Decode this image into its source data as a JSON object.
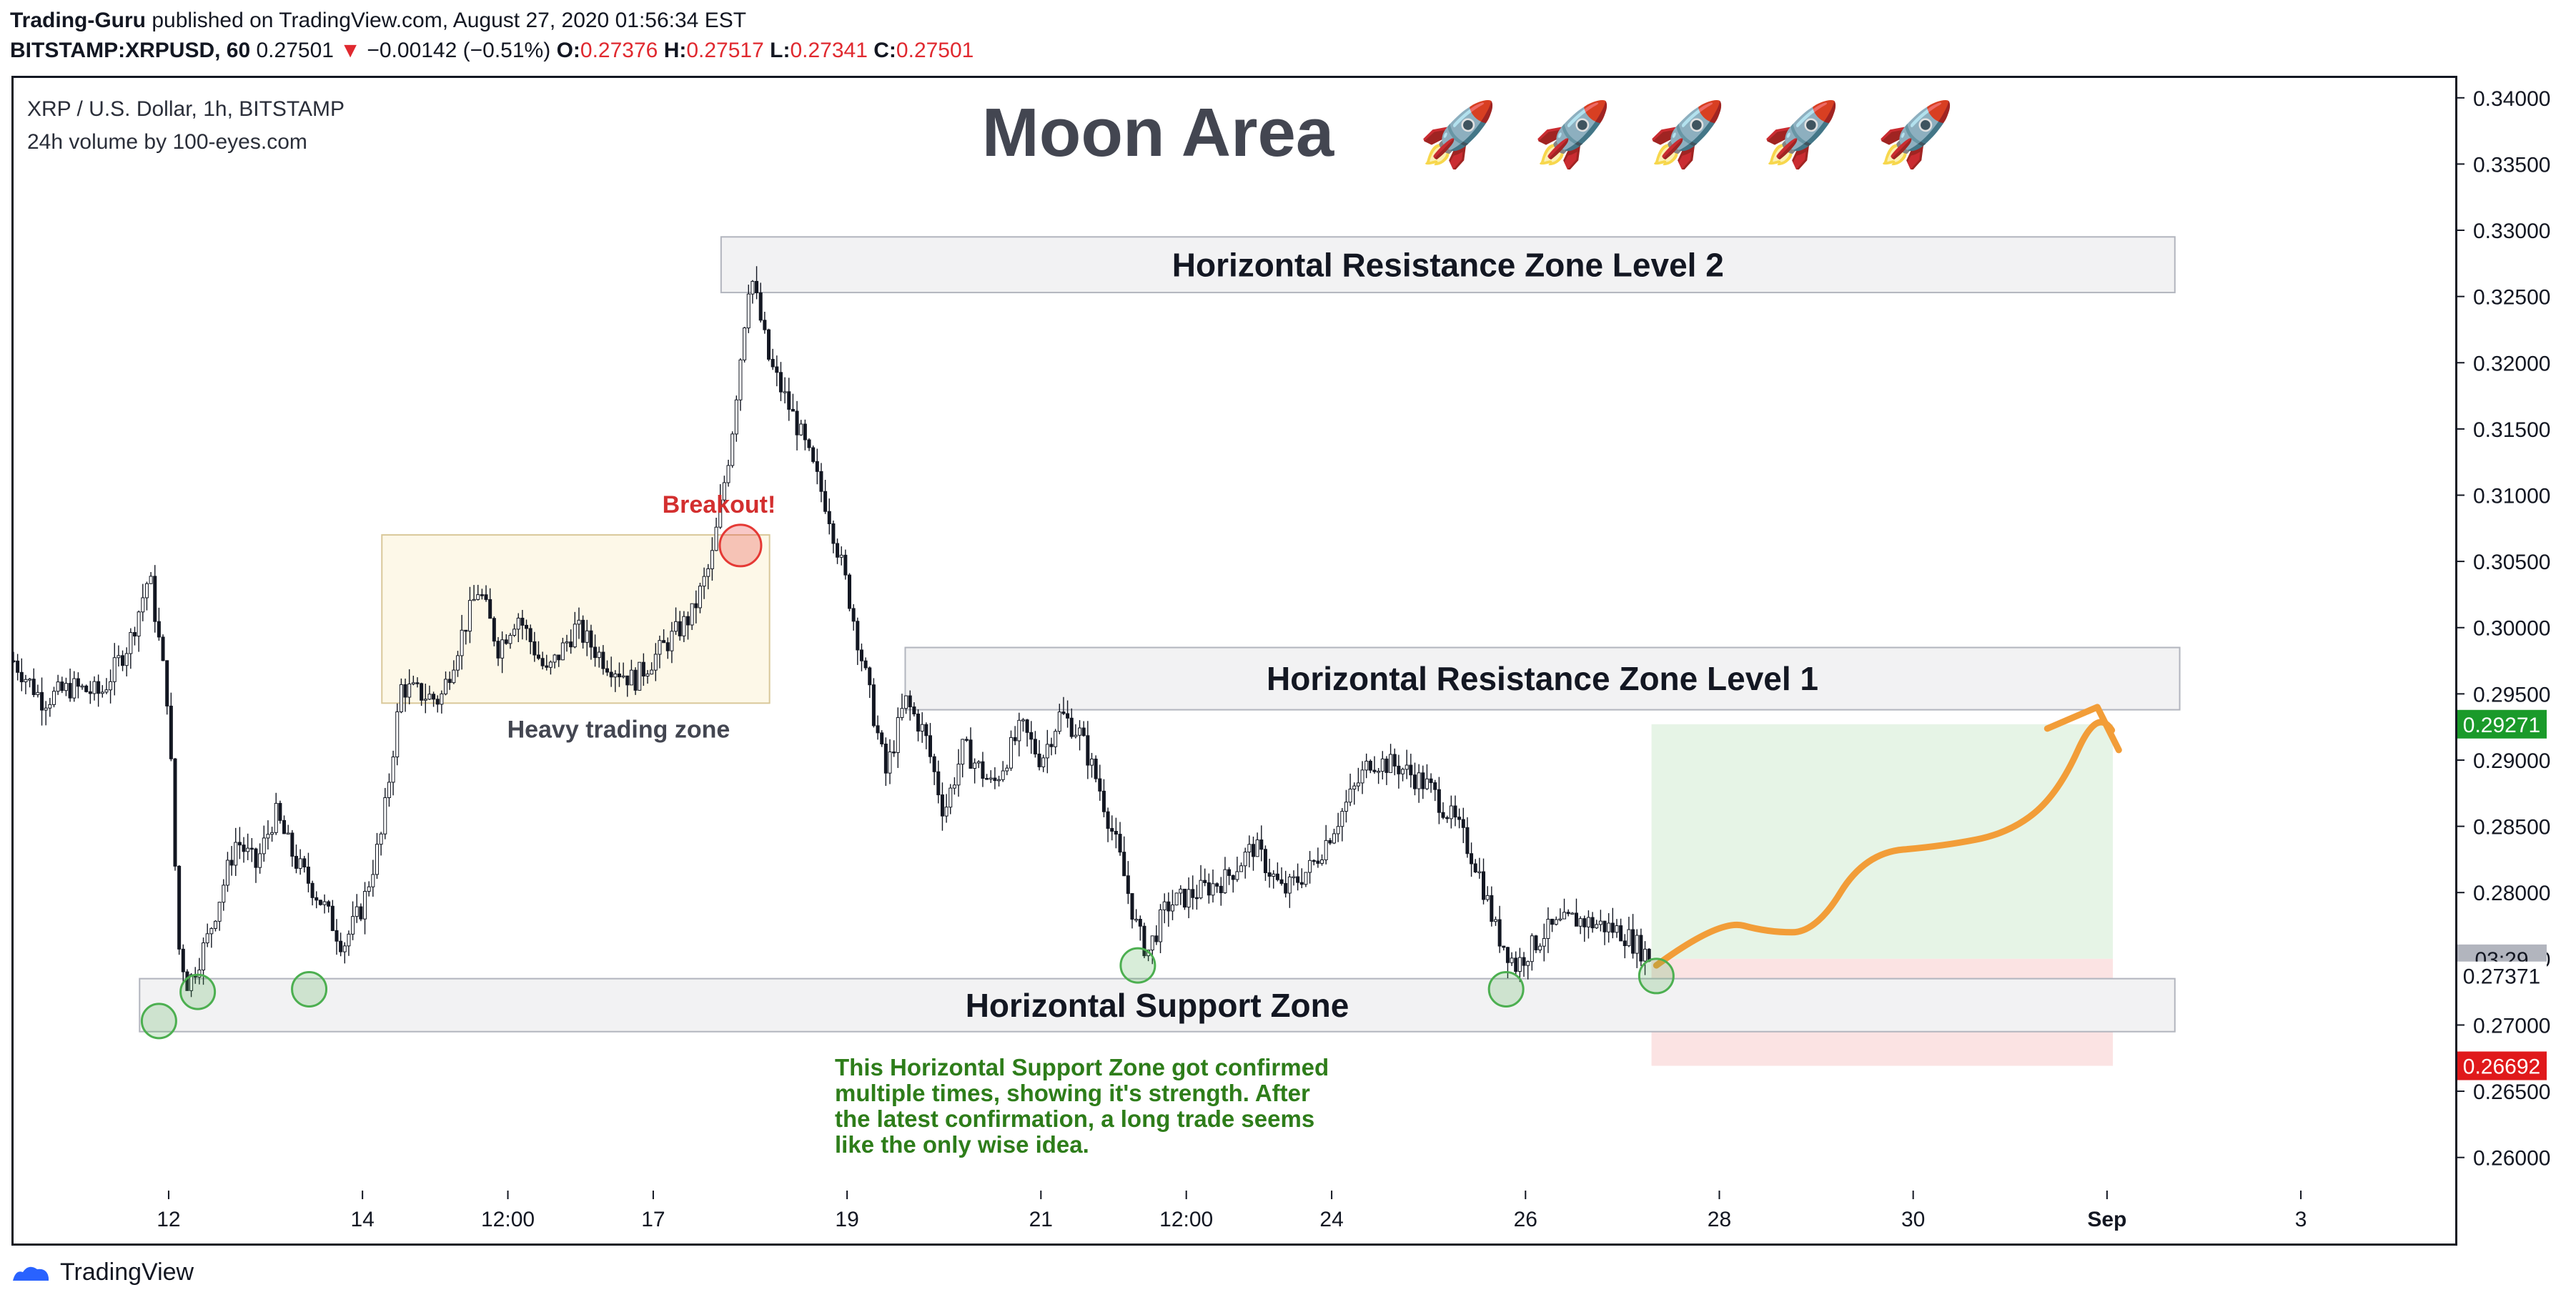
{
  "header": {
    "author": "Trading-Guru",
    "published": "published on TradingView.com, August 27, 2020 01:56:34 EST",
    "symbol": "BITSTAMP:XRPUSD, 60",
    "last": "0.27501",
    "down_arrow": "▼",
    "change": "−0.00142 (−0.51%)",
    "o_label": "O:",
    "o_value": "0.27376",
    "h_label": "H:",
    "h_value": "0.27517",
    "l_label": "L:",
    "l_value": "0.27341",
    "c_label": "C:",
    "c_value": "0.27501"
  },
  "legend": {
    "line1": "XRP / U.S. Dollar, 1h, BITSTAMP",
    "line2": "24h volume by 100-eyes.com"
  },
  "footer": {
    "brand": "TradingView"
  },
  "colors": {
    "candle": "#131722",
    "zone_fill": "#f2f2f3",
    "zone_stroke": "#b2b5be",
    "consolidation_fill": "#fdf8e8",
    "consolidation_stroke": "#d9c89a",
    "circle_green": "#4caf50",
    "circle_red": "#e53935",
    "target_fill": "#e6f4e6",
    "stop_fill": "#fbe3e3",
    "projection": "#f29d38",
    "green_label": "#1a9a2a",
    "red_label": "#e0191b",
    "grey_label": "#b2b5be",
    "note_text": "#2e7d1a",
    "breakout_text": "#d32f2f"
  },
  "chart_data": {
    "type": "candlestick",
    "title": "Moon Area",
    "title_emoji": "🚀",
    "y_ticks": [
      "0.34000",
      "0.33500",
      "0.33000",
      "0.32500",
      "0.32000",
      "0.31500",
      "0.31000",
      "0.30500",
      "0.30000",
      "0.29500",
      "0.29000",
      "0.28500",
      "0.28000",
      "0.27500",
      "0.27000",
      "0.26500",
      "0.26000"
    ],
    "y_tick_values": [
      0.34,
      0.335,
      0.33,
      0.325,
      0.32,
      0.315,
      0.31,
      0.305,
      0.3,
      0.295,
      0.29,
      0.285,
      0.28,
      0.275,
      0.27,
      0.265,
      0.26
    ],
    "ylim": [
      0.2575,
      0.3415
    ],
    "x_ticks": [
      "12",
      "14",
      "12:00",
      "17",
      "19",
      "21",
      "12:00",
      "24",
      "26",
      "28",
      "30",
      "Sep",
      "3"
    ],
    "x_tick_days": [
      12,
      14,
      15.5,
      17,
      19,
      21,
      22.5,
      24,
      26,
      28,
      30,
      32,
      34
    ],
    "xlim": [
      10.4,
      35.6
    ],
    "price_path": [
      [
        10.4,
        0.2975
      ],
      [
        10.7,
        0.2945
      ],
      [
        11.0,
        0.2955
      ],
      [
        11.3,
        0.295
      ],
      [
        11.6,
        0.299
      ],
      [
        11.8,
        0.304
      ],
      [
        12.0,
        0.294
      ],
      [
        12.1,
        0.276
      ],
      [
        12.2,
        0.273
      ],
      [
        12.4,
        0.2765
      ],
      [
        12.7,
        0.284
      ],
      [
        12.9,
        0.282
      ],
      [
        13.1,
        0.286
      ],
      [
        13.3,
        0.2825
      ],
      [
        13.6,
        0.279
      ],
      [
        13.8,
        0.276
      ],
      [
        14.0,
        0.279
      ],
      [
        14.2,
        0.2845
      ],
      [
        14.4,
        0.2955
      ],
      [
        14.6,
        0.295
      ],
      [
        14.8,
        0.2945
      ],
      [
        15.0,
        0.299
      ],
      [
        15.2,
        0.303
      ],
      [
        15.4,
        0.2985
      ],
      [
        15.6,
        0.301
      ],
      [
        15.9,
        0.2965
      ],
      [
        16.2,
        0.3
      ],
      [
        16.5,
        0.2975
      ],
      [
        16.8,
        0.296
      ],
      [
        17.1,
        0.2985
      ],
      [
        17.4,
        0.301
      ],
      [
        17.6,
        0.305
      ],
      [
        17.8,
        0.314
      ],
      [
        18.0,
        0.327
      ],
      [
        18.2,
        0.32
      ],
      [
        18.5,
        0.315
      ],
      [
        18.8,
        0.309
      ],
      [
        19.0,
        0.303
      ],
      [
        19.2,
        0.296
      ],
      [
        19.4,
        0.289
      ],
      [
        19.6,
        0.2945
      ],
      [
        19.8,
        0.292
      ],
      [
        20.0,
        0.286
      ],
      [
        20.2,
        0.291
      ],
      [
        20.5,
        0.288
      ],
      [
        20.8,
        0.2925
      ],
      [
        21.0,
        0.29
      ],
      [
        21.2,
        0.2935
      ],
      [
        21.4,
        0.292
      ],
      [
        21.6,
        0.288
      ],
      [
        21.8,
        0.283
      ],
      [
        22.0,
        0.277
      ],
      [
        22.1,
        0.2755
      ],
      [
        22.3,
        0.279
      ],
      [
        22.6,
        0.28
      ],
      [
        22.9,
        0.281
      ],
      [
        23.2,
        0.2835
      ],
      [
        23.5,
        0.28
      ],
      [
        23.8,
        0.282
      ],
      [
        24.1,
        0.286
      ],
      [
        24.4,
        0.29
      ],
      [
        24.7,
        0.2895
      ],
      [
        25.0,
        0.288
      ],
      [
        25.3,
        0.285
      ],
      [
        25.5,
        0.282
      ],
      [
        25.7,
        0.277
      ],
      [
        25.9,
        0.2745
      ],
      [
        26.2,
        0.277
      ],
      [
        26.5,
        0.278
      ],
      [
        26.8,
        0.2775
      ],
      [
        27.0,
        0.277
      ],
      [
        27.3,
        0.275
      ]
    ],
    "annotations": {
      "resistance2": {
        "label": "Horizontal Resistance Zone Level 2",
        "from": 17.7,
        "to": 32.7,
        "top": 0.3295,
        "bottom": 0.3253
      },
      "resistance1": {
        "label": "Horizontal Resistance Zone Level 1",
        "from": 19.6,
        "to": 32.75,
        "top": 0.2985,
        "bottom": 0.2938
      },
      "support": {
        "label": "Horizontal Support Zone",
        "from": 11.7,
        "to": 32.7,
        "top": 0.2735,
        "bottom": 0.2695
      },
      "consolidation": {
        "label": "Heavy trading zone",
        "from": 14.2,
        "to": 18.2,
        "top": 0.307,
        "bottom": 0.2943
      },
      "breakout": {
        "label": "Breakout!",
        "x": 17.9,
        "y": 0.3062
      },
      "touches": [
        [
          11.9,
          0.2703
        ],
        [
          12.3,
          0.2725
        ],
        [
          13.45,
          0.2727
        ],
        [
          22.0,
          0.2745
        ],
        [
          25.8,
          0.2727
        ],
        [
          27.35,
          0.2737
        ]
      ],
      "note": [
        "This Horizontal Support Zone got confirmed",
        "multiple times, showing it's strength. After",
        "the latest confirmation, a long trade seems",
        "like the only wise idea."
      ],
      "position": {
        "from": 27.3,
        "to": 32.06,
        "entry": 0.275,
        "target": 0.29271,
        "stop": 0.26692
      },
      "projection": [
        [
          27.35,
          0.2745
        ],
        [
          28.0,
          0.278
        ],
        [
          28.5,
          0.277
        ],
        [
          29.0,
          0.277
        ],
        [
          29.5,
          0.283
        ],
        [
          30.3,
          0.2835
        ],
        [
          31.0,
          0.2845
        ],
        [
          31.5,
          0.2875
        ],
        [
          31.9,
          0.294
        ],
        [
          32.2,
          0.2905
        ]
      ],
      "price_labels": [
        {
          "text": "0.29271",
          "value": 0.29271,
          "kind": "green"
        },
        {
          "text": "03:29",
          "value": 0.275,
          "kind": "grey"
        },
        {
          "text": "0.27371",
          "value": 0.27371,
          "kind": "plain"
        },
        {
          "text": "0.26692",
          "value": 0.26692,
          "kind": "red"
        }
      ]
    }
  }
}
